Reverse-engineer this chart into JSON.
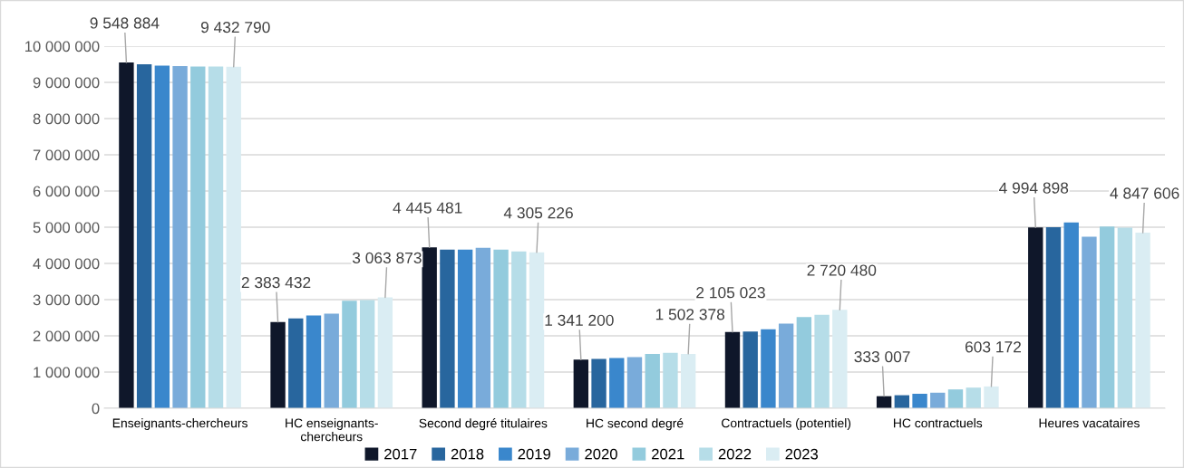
{
  "chart_data": {
    "type": "bar",
    "categories": [
      "Enseignants-chercheurs",
      "HC enseignants-\nchercheurs",
      "Second degré titulaires",
      "HC second degré",
      "Contractuels (potentiel)",
      "HC contractuels",
      "Heures vacataires"
    ],
    "series": [
      {
        "name": "2017",
        "color": "#0f172a",
        "values": [
          9548884,
          2383432,
          4445481,
          1341200,
          2105023,
          333007,
          4994898
        ],
        "value_labels": [
          "9 548 884",
          "2 383 432",
          "4 445 481",
          "1 341 200",
          "2 105 023",
          "333 007",
          "4 994 898"
        ]
      },
      {
        "name": "2018",
        "color": "#28669e",
        "values": [
          9500000,
          2480000,
          4380000,
          1360000,
          2120000,
          360000,
          5000000
        ]
      },
      {
        "name": "2019",
        "color": "#3a87cc",
        "values": [
          9460000,
          2560000,
          4380000,
          1390000,
          2180000,
          400000,
          5130000
        ]
      },
      {
        "name": "2020",
        "color": "#79abda",
        "values": [
          9450000,
          2610000,
          4430000,
          1410000,
          2340000,
          430000,
          4740000
        ]
      },
      {
        "name": "2021",
        "color": "#93cbdd",
        "values": [
          9440000,
          2970000,
          4380000,
          1500000,
          2520000,
          520000,
          5020000
        ]
      },
      {
        "name": "2022",
        "color": "#b6dde8",
        "values": [
          9440000,
          2990000,
          4330000,
          1530000,
          2580000,
          570000,
          4990000
        ]
      },
      {
        "name": "2023",
        "color": "#daedf3",
        "values": [
          9432790,
          3063873,
          4305226,
          1502378,
          2720480,
          603172,
          4847606
        ],
        "value_labels": [
          "9 432 790",
          "3 063 873",
          "4 305 226",
          "1 502 378",
          "2 720 480",
          "603 172",
          "4 847 606"
        ]
      }
    ],
    "ylim": [
      0,
      10000000
    ],
    "yticks": [
      {
        "value": 0,
        "label": "0"
      },
      {
        "value": 1000000,
        "label": "1 000 000"
      },
      {
        "value": 2000000,
        "label": "2 000 000"
      },
      {
        "value": 3000000,
        "label": "3 000 000"
      },
      {
        "value": 4000000,
        "label": "4 000 000"
      },
      {
        "value": 5000000,
        "label": "5 000 000"
      },
      {
        "value": 6000000,
        "label": "6 000 000"
      },
      {
        "value": 7000000,
        "label": "7 000 000"
      },
      {
        "value": 8000000,
        "label": "8 000 000"
      },
      {
        "value": 9000000,
        "label": "9 000 000"
      },
      {
        "value": 10000000,
        "label": "10 000 000"
      }
    ],
    "grid": "y",
    "legend": "bottom"
  }
}
